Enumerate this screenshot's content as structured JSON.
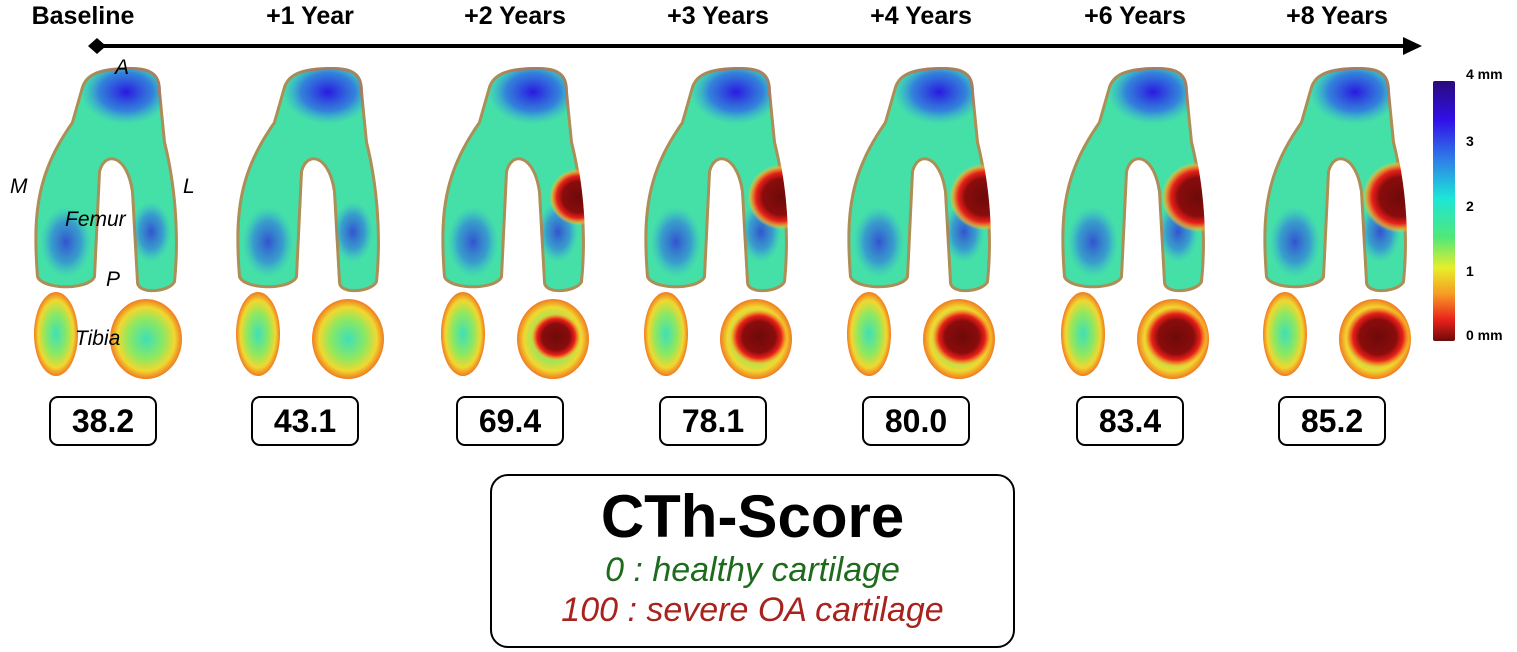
{
  "timepoints": [
    {
      "label": "Baseline",
      "score": "38.2"
    },
    {
      "label": "+1 Year",
      "score": "43.1"
    },
    {
      "label": "+2 Years",
      "score": "69.4"
    },
    {
      "label": "+3 Years",
      "score": "78.1"
    },
    {
      "label": "+4 Years",
      "score": "80.0"
    },
    {
      "label": "+6 Years",
      "score": "83.4"
    },
    {
      "label": "+8 Years",
      "score": "85.2"
    }
  ],
  "annotations": {
    "anterior": "A",
    "medial": "M",
    "lateral": "L",
    "femur": "Femur",
    "posterior": "P",
    "tibia": "Tibia"
  },
  "colorbar": {
    "labels": [
      "4 mm",
      "3",
      "2",
      "1",
      "0 mm"
    ],
    "colormap": "jet",
    "range_mm": [
      0,
      4
    ]
  },
  "legend": {
    "title": "CTh-Score",
    "healthy": "0 : healthy cartilage",
    "severe": "100 : severe OA cartilage",
    "healthy_color": "#1e6b1e",
    "severe_color": "#a8231d"
  }
}
